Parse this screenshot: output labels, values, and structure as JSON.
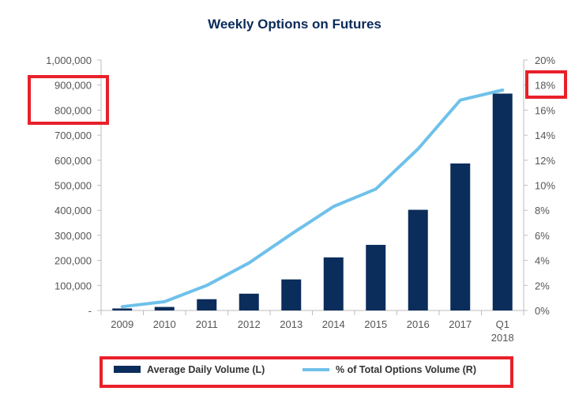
{
  "chart_data": {
    "type": "bar",
    "title": "Weekly Options on Futures",
    "categories": [
      "2009",
      "2010",
      "2011",
      "2012",
      "2013",
      "2014",
      "2015",
      "2016",
      "2017",
      "Q1 2018"
    ],
    "series": [
      {
        "name": "Average Daily Volume (L)",
        "type": "bar",
        "axis": "left",
        "color": "#0b2d5b",
        "values": [
          8000,
          14000,
          45000,
          67000,
          124000,
          212000,
          262000,
          402000,
          587000,
          866000
        ]
      },
      {
        "name": "% of Total Options Volume (R)",
        "type": "line",
        "axis": "right",
        "color": "#6ec1ea",
        "values": [
          0.3,
          0.7,
          2.0,
          3.8,
          6.1,
          8.3,
          9.7,
          12.9,
          16.8,
          17.6
        ]
      }
    ],
    "left_axis": {
      "ylim": [
        0,
        1000000
      ],
      "ticks": [
        0,
        100000,
        200000,
        300000,
        400000,
        500000,
        600000,
        700000,
        800000,
        900000,
        1000000
      ],
      "tick_labels": [
        "-",
        "100,000",
        "200,000",
        "300,000",
        "400,000",
        "500,000",
        "600,000",
        "700,000",
        "800,000",
        "900,000",
        "1,000,000"
      ]
    },
    "right_axis": {
      "ylim": [
        0,
        20
      ],
      "ticks": [
        0,
        2,
        4,
        6,
        8,
        10,
        12,
        14,
        16,
        18,
        20
      ],
      "tick_labels": [
        "0%",
        "2%",
        "4%",
        "6%",
        "8%",
        "10%",
        "12%",
        "14%",
        "16%",
        "18%",
        "20%"
      ]
    },
    "x_tick_labels": [
      [
        "2009"
      ],
      [
        "2010"
      ],
      [
        "2011"
      ],
      [
        "2012"
      ],
      [
        "2013"
      ],
      [
        "2014"
      ],
      [
        "2015"
      ],
      [
        "2016"
      ],
      [
        "2017"
      ],
      [
        "Q1",
        "2018"
      ]
    ],
    "grid": false,
    "legend": "bottom",
    "highlight_color": "#e8202a",
    "highlights": [
      "left-axis-800k-900k-labels",
      "right-axis-18pct-label",
      "legend"
    ]
  }
}
